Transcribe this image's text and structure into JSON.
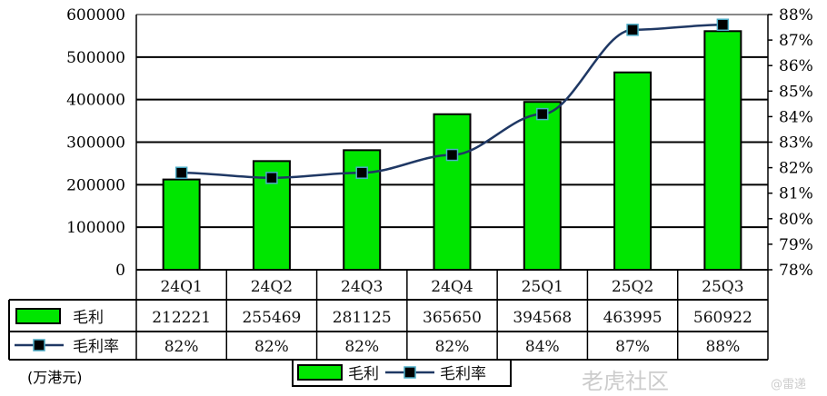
{
  "chart_data": {
    "type": "bar+line",
    "categories": [
      "24Q1",
      "24Q2",
      "24Q3",
      "24Q4",
      "25Q1",
      "25Q2",
      "25Q3"
    ],
    "series": [
      {
        "name": "毛利",
        "type": "bar",
        "axis": "left",
        "color": "#00E600",
        "values": [
          212221,
          255469,
          281125,
          365650,
          394568,
          463995,
          560922
        ],
        "table_labels": [
          "212221",
          "255469",
          "281125",
          "365650",
          "394568",
          "463995",
          "560922"
        ]
      },
      {
        "name": "毛利率",
        "type": "line",
        "axis": "right",
        "color": "#1F3864",
        "marker_color": "#000000",
        "marker_edge": "#4BACC6",
        "values": [
          81.8,
          81.6,
          81.8,
          82.5,
          84.1,
          87.4,
          87.6
        ],
        "table_labels": [
          "82%",
          "82%",
          "82%",
          "82%",
          "84%",
          "87%",
          "88%"
        ]
      }
    ],
    "left_axis": {
      "ylim": [
        0,
        600000
      ],
      "ticks": [
        "0",
        "100000",
        "200000",
        "300000",
        "400000",
        "500000",
        "600000"
      ]
    },
    "right_axis": {
      "ylim": [
        78,
        88
      ],
      "ticks": [
        "78%",
        "79%",
        "80%",
        "81%",
        "82%",
        "83%",
        "84%",
        "85%",
        "86%",
        "87%",
        "88%"
      ]
    },
    "grid": true,
    "legend_placement": "bottom",
    "unit_label": "(万港元)",
    "data_table": true
  },
  "watermark": {
    "text": "老虎社区",
    "credit": "@雷递"
  }
}
